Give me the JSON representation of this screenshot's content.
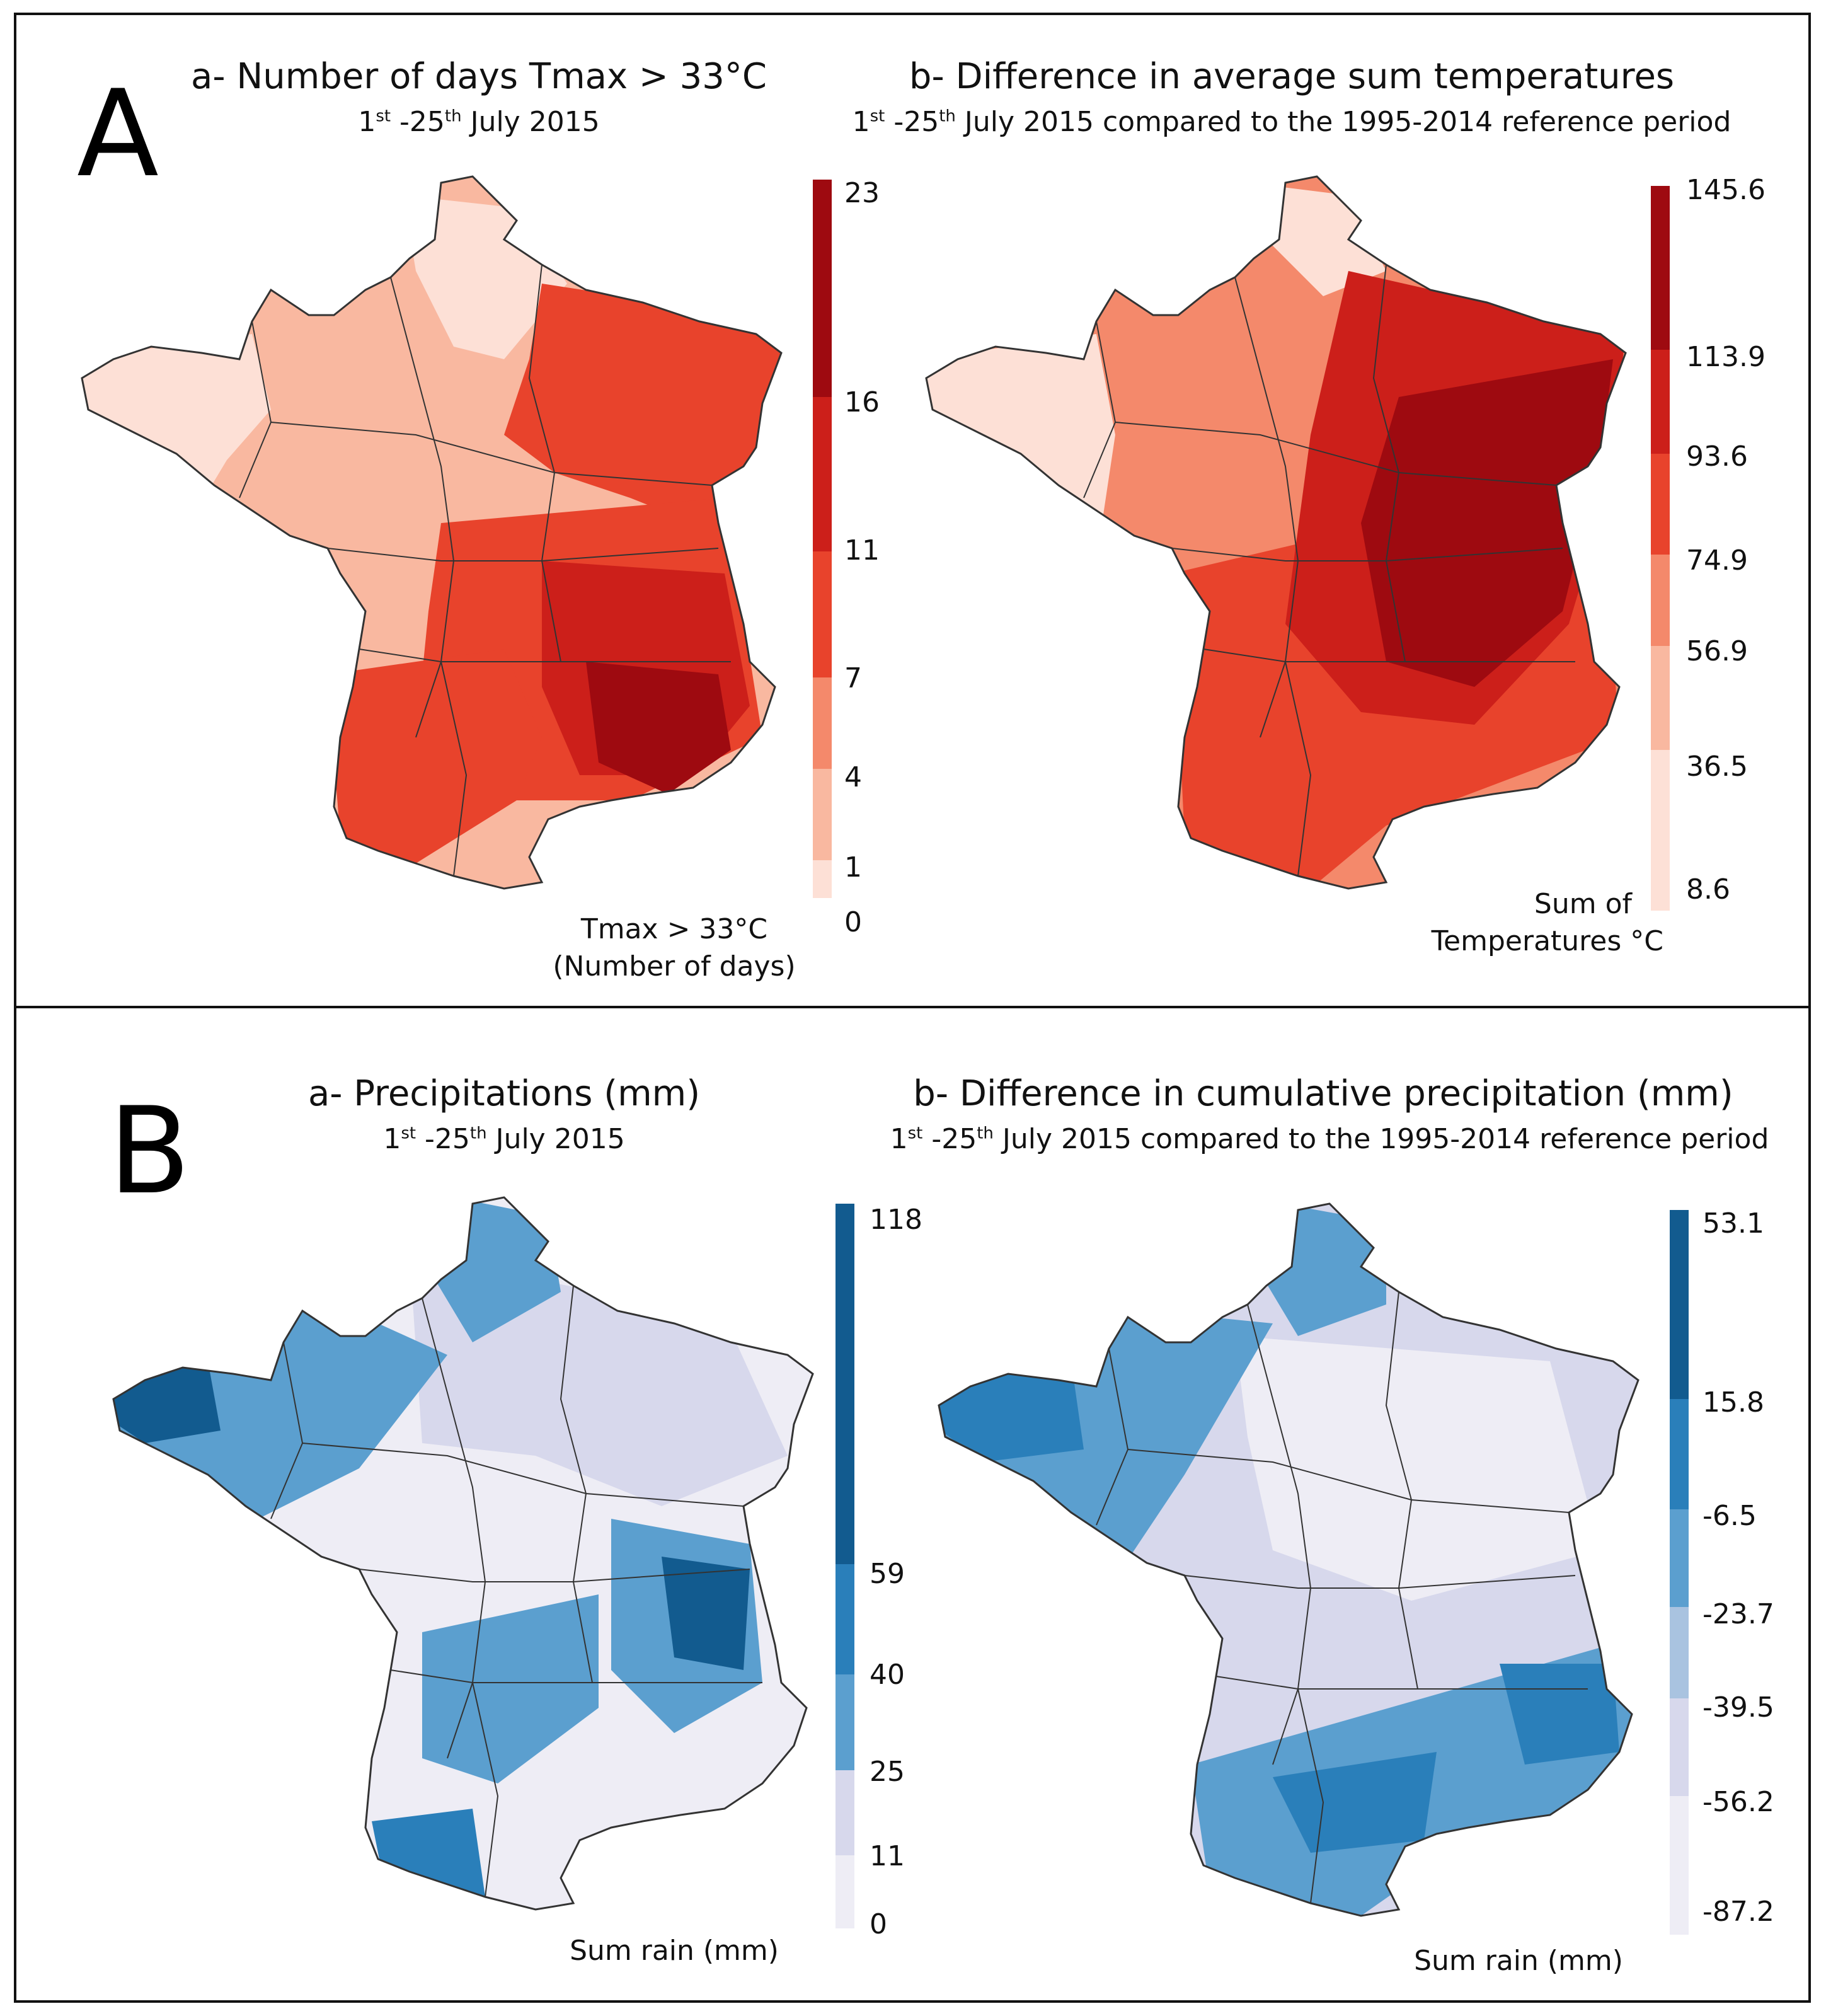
{
  "panelA": {
    "letter": "A",
    "mapA": {
      "title": "a- Number of days Tmax > 33°C",
      "subtitle": {
        "s1": "1",
        "sup1": "st",
        "mid": " -25",
        "sup2": "th",
        "rest": " July 2015"
      },
      "legend_ticks": [
        "23",
        "16",
        "11",
        "7",
        "4",
        "1",
        "0"
      ],
      "legend_caption_1": "Tmax > 33°C",
      "legend_caption_2": "(Number of days)"
    },
    "mapB": {
      "title": "b- Difference in average sum temperatures",
      "subtitle": {
        "s1": "1",
        "sup1": "st",
        "mid": " -25",
        "sup2": "th",
        "rest": " July 2015 compared to  the 1995-2014 reference period"
      },
      "legend_ticks": [
        "145.6",
        "113.9",
        "93.6",
        "74.9",
        "56.9",
        "36.5",
        "8.6"
      ],
      "legend_caption_1": "Sum of",
      "legend_caption_2": "Temperatures °C"
    }
  },
  "panelB": {
    "letter": "B",
    "mapA": {
      "title": "a- Precipitations (mm)",
      "subtitle": {
        "s1": "1",
        "sup1": "st",
        "mid": " -25",
        "sup2": "th",
        "rest": " July 2015"
      },
      "legend_ticks": [
        "118",
        "59",
        "40",
        "25",
        "11",
        "0"
      ],
      "legend_caption_1": "Sum rain (mm)"
    },
    "mapB": {
      "title": "b- Difference in cumulative precipitation (mm)",
      "subtitle": {
        "s1": "1",
        "sup1": "st",
        "mid": " -25",
        "sup2": "th",
        "rest": " July 2015 compared to the 1995-2014 reference period"
      },
      "legend_ticks": [
        "53.1",
        "15.8",
        "-6.5",
        "-23.7",
        "-39.5",
        "-56.2",
        "-87.2"
      ],
      "legend_caption_1": "Sum rain (mm)"
    }
  },
  "colors": {
    "reds": [
      "#fde0d6",
      "#f9b8a0",
      "#f4896b",
      "#e8432c",
      "#cc1f1a",
      "#9e0a10"
    ],
    "blues": [
      "#eeedf5",
      "#d7d8ec",
      "#a9c3e0",
      "#5b9fcf",
      "#2a7fba",
      "#125b8f"
    ],
    "border": "#333333"
  }
}
